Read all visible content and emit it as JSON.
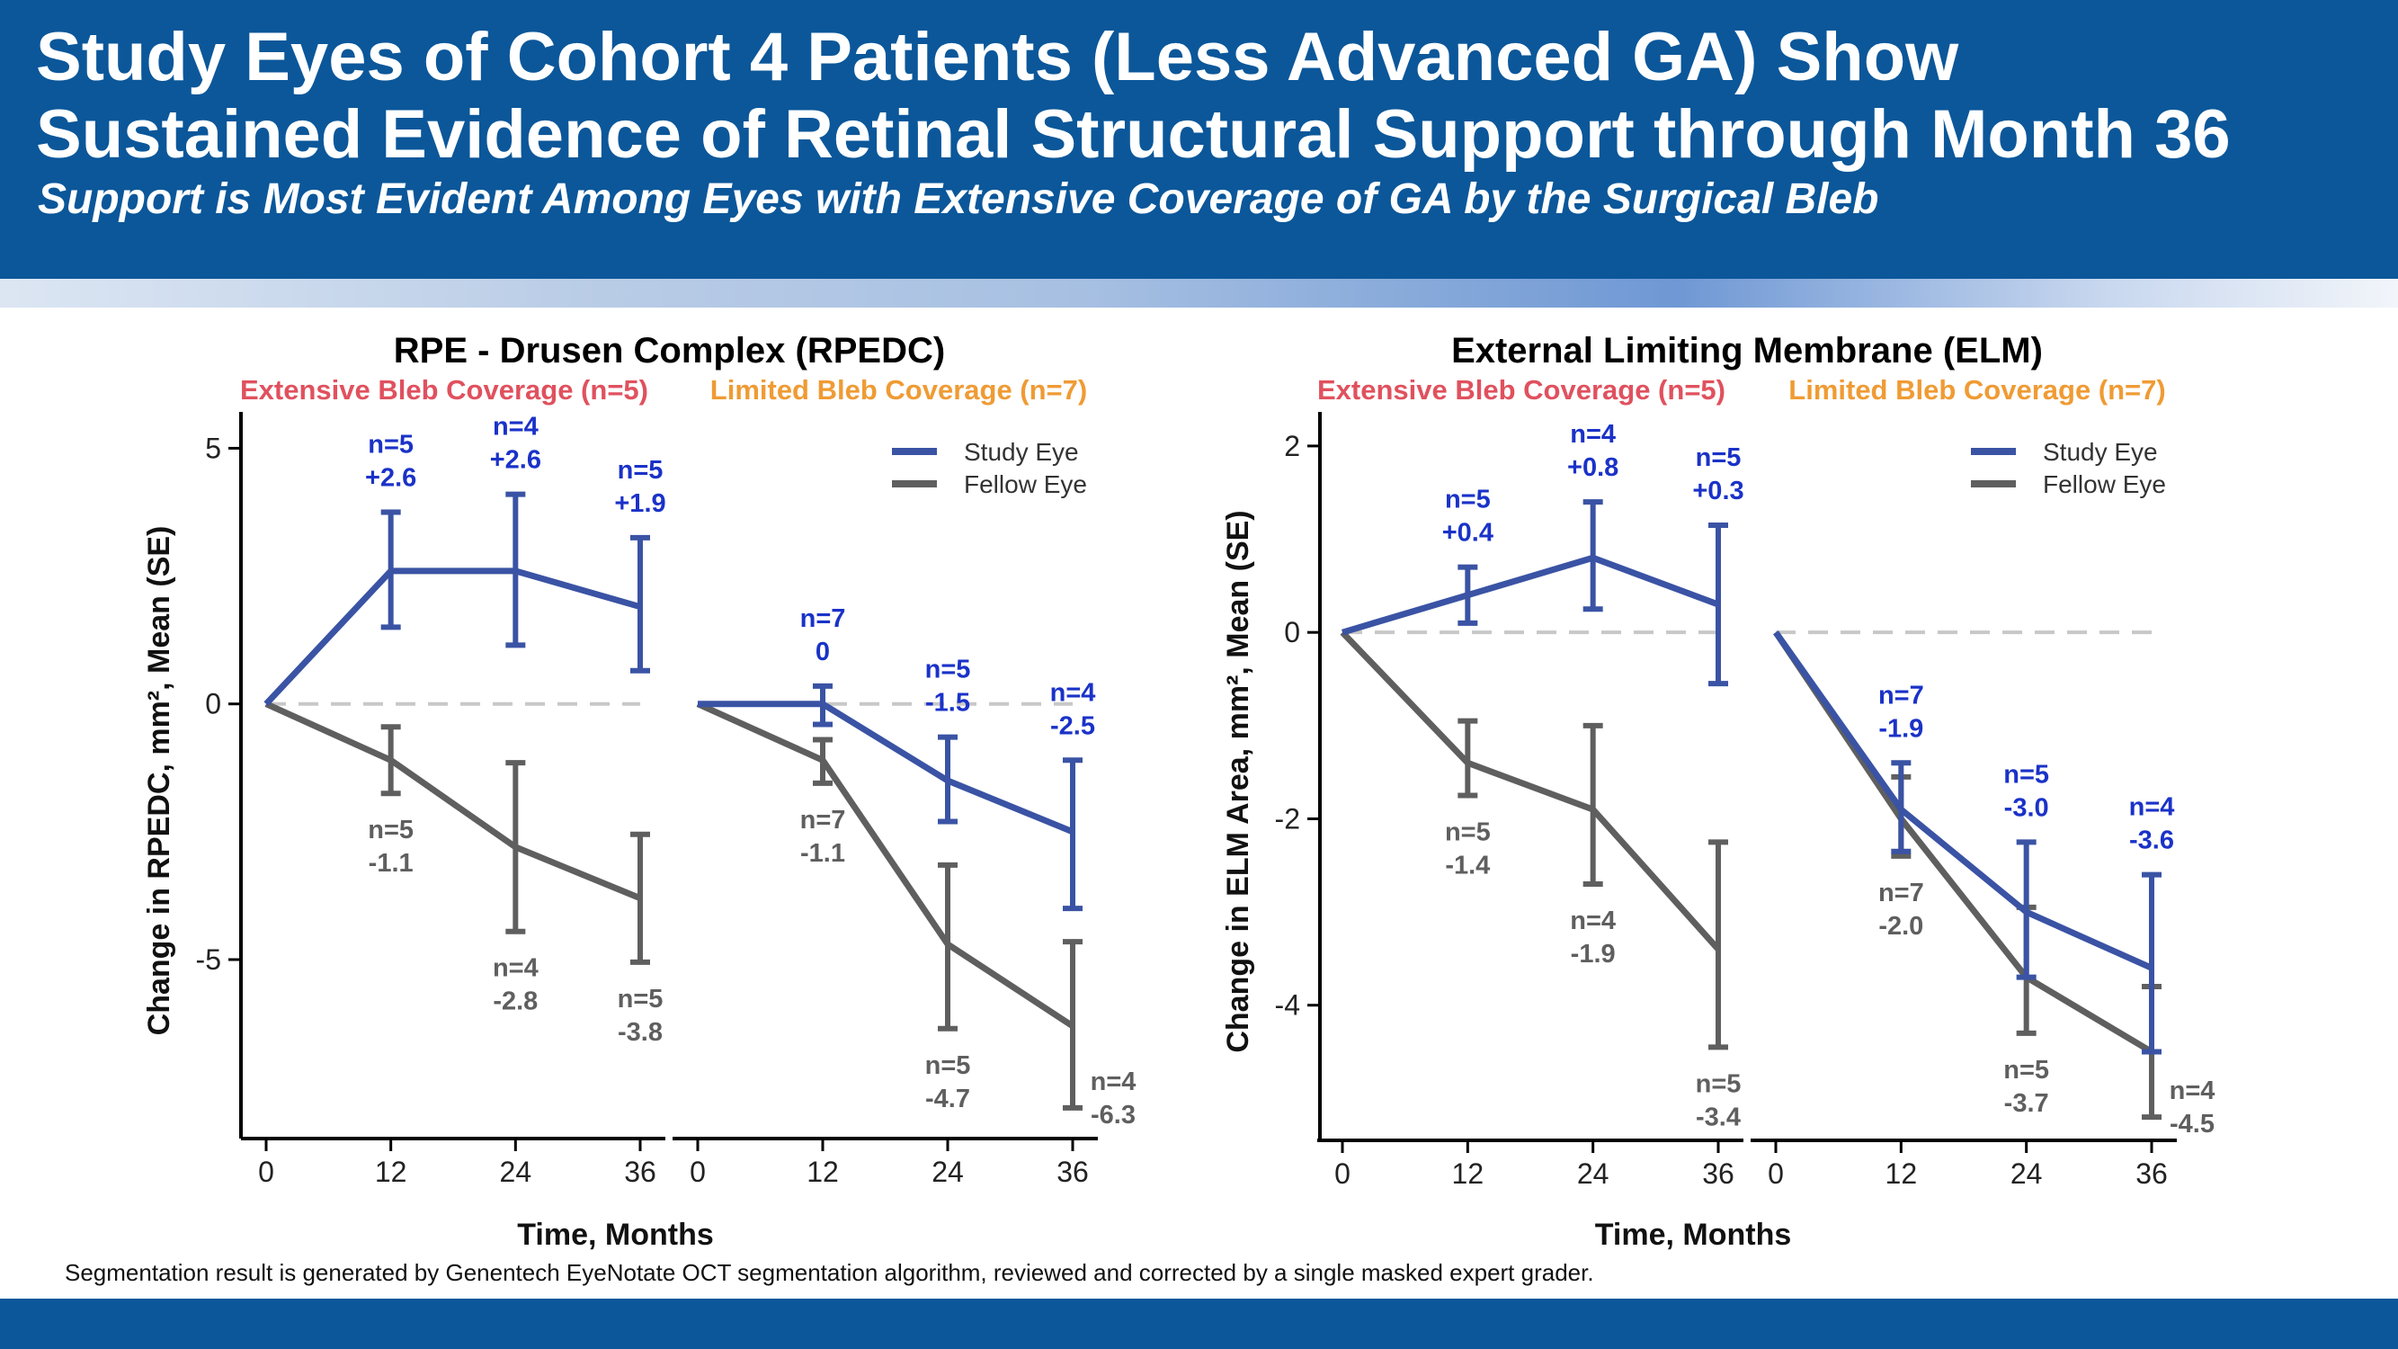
{
  "header": {
    "title_line_1": "Study Eyes of Cohort 4 Patients (Less Advanced GA) Show",
    "title_line_2": "Sustained Evidence of Retinal Structural Support through Month 36",
    "subtitle": "Support is Most Evident Among Eyes with Extensive Coverage of GA by the Surgical Bleb"
  },
  "footnote": "Segmentation result is generated by Genentech EyeNotate OCT segmentation algorithm, reviewed and corrected by a single masked expert grader.",
  "colors": {
    "header_bg": "#0b579a",
    "study_eye": "#3a53a4",
    "fellow_eye": "#5f5f5f",
    "study_label": "#1a32c8",
    "extensive_label": "#e0515e",
    "limited_label": "#ef9b34",
    "zero_line": "#c8c8c8"
  },
  "chart_data": [
    {
      "type": "line",
      "title": "RPE - Drusen Complex (RPEDC)",
      "xlabel": "Time, Months",
      "ylabel": "Change in RPEDC, mm², Mean (SE)",
      "yticks": [
        5,
        0,
        -5
      ],
      "ylim": [
        -8.5,
        5.5
      ],
      "legend": {
        "position": "top-right",
        "entries": [
          "Study Eye",
          "Fellow Eye"
        ]
      },
      "panels": [
        {
          "label": "Extensive Bleb Coverage (n=5)",
          "x": [
            0,
            12,
            24,
            36
          ],
          "series": [
            {
              "name": "Study Eye",
              "values": [
                0,
                2.6,
                2.6,
                1.9
              ],
              "lower": [
                0,
                1.5,
                1.15,
                0.65
              ],
              "upper": [
                0,
                3.75,
                4.1,
                3.25
              ],
              "labels": [
                null,
                [
                  "n=5",
                  "+2.6"
                ],
                [
                  "n=4",
                  "+2.6"
                ],
                [
                  "n=5",
                  "+1.9"
                ]
              ]
            },
            {
              "name": "Fellow Eye",
              "values": [
                0,
                -1.1,
                -2.8,
                -3.8
              ],
              "lower": [
                0,
                -1.75,
                -4.45,
                -5.05
              ],
              "upper": [
                0,
                -0.45,
                -1.15,
                -2.55
              ],
              "labels": [
                null,
                [
                  "n=5",
                  "-1.1"
                ],
                [
                  "n=4",
                  "-2.8"
                ],
                [
                  "n=5",
                  "-3.8"
                ]
              ]
            }
          ]
        },
        {
          "label": "Limited Bleb Coverage (n=7)",
          "x": [
            0,
            12,
            24,
            36
          ],
          "series": [
            {
              "name": "Study Eye",
              "values": [
                0,
                0,
                -1.5,
                -2.5
              ],
              "lower": [
                0,
                -0.4,
                -2.3,
                -4.0
              ],
              "upper": [
                0,
                0.35,
                -0.65,
                -1.1
              ],
              "labels": [
                null,
                [
                  "n=7",
                  "0"
                ],
                [
                  "n=5",
                  "-1.5"
                ],
                [
                  "n=4",
                  "-2.5"
                ]
              ]
            },
            {
              "name": "Fellow Eye",
              "values": [
                0,
                -1.1,
                -4.7,
                -6.3
              ],
              "lower": [
                0,
                -1.55,
                -6.35,
                -7.9
              ],
              "upper": [
                0,
                -0.7,
                -3.15,
                -4.65
              ],
              "labels": [
                null,
                [
                  "n=7",
                  "-1.1"
                ],
                [
                  "n=5",
                  "-4.7"
                ],
                [
                  "n=4",
                  "-6.3"
                ]
              ]
            }
          ]
        }
      ]
    },
    {
      "type": "line",
      "title": "External Limiting Membrane (ELM)",
      "xlabel": "Time, Months",
      "ylabel": "Change in ELM Area, mm², Mean (SE)",
      "yticks": [
        2,
        0,
        -2,
        -4
      ],
      "ylim": [
        -5.45,
        2.25
      ],
      "legend": {
        "position": "top-right",
        "entries": [
          "Study Eye",
          "Fellow Eye"
        ]
      },
      "panels": [
        {
          "label": "Extensive Bleb Coverage (n=5)",
          "x": [
            0,
            12,
            24,
            36
          ],
          "series": [
            {
              "name": "Study Eye",
              "values": [
                0,
                0.4,
                0.8,
                0.3
              ],
              "lower": [
                0,
                0.1,
                0.25,
                -0.55
              ],
              "upper": [
                0,
                0.7,
                1.4,
                1.15
              ],
              "labels": [
                null,
                [
                  "n=5",
                  "+0.4"
                ],
                [
                  "n=4",
                  "+0.8"
                ],
                [
                  "n=5",
                  "+0.3"
                ]
              ]
            },
            {
              "name": "Fellow Eye",
              "values": [
                0,
                -1.4,
                -1.9,
                -3.4
              ],
              "lower": [
                0,
                -1.75,
                -2.7,
                -4.45
              ],
              "upper": [
                0,
                -0.95,
                -1.0,
                -2.25
              ],
              "labels": [
                null,
                [
                  "n=5",
                  "-1.4"
                ],
                [
                  "n=4",
                  "-1.9"
                ],
                [
                  "n=5",
                  "-3.4"
                ]
              ]
            }
          ]
        },
        {
          "label": "Limited Bleb Coverage (n=7)",
          "x": [
            0,
            12,
            24,
            36
          ],
          "series": [
            {
              "name": "Study Eye",
              "values": [
                0,
                -1.9,
                -3.0,
                -3.6
              ],
              "lower": [
                0,
                -2.35,
                -3.7,
                -4.5
              ],
              "upper": [
                0,
                -1.4,
                -2.25,
                -2.6
              ],
              "labels": [
                null,
                [
                  "n=7",
                  "-1.9"
                ],
                [
                  "n=5",
                  "-3.0"
                ],
                [
                  "n=4",
                  "-3.6"
                ]
              ]
            },
            {
              "name": "Fellow Eye",
              "values": [
                0,
                -2.0,
                -3.7,
                -4.5
              ],
              "lower": [
                0,
                -2.4,
                -4.3,
                -5.2
              ],
              "upper": [
                0,
                -1.55,
                -2.95,
                -3.8
              ],
              "labels": [
                null,
                [
                  "n=7",
                  "-2.0"
                ],
                [
                  "n=5",
                  "-3.7"
                ],
                [
                  "n=4",
                  "-4.5"
                ]
              ]
            }
          ]
        }
      ]
    }
  ]
}
